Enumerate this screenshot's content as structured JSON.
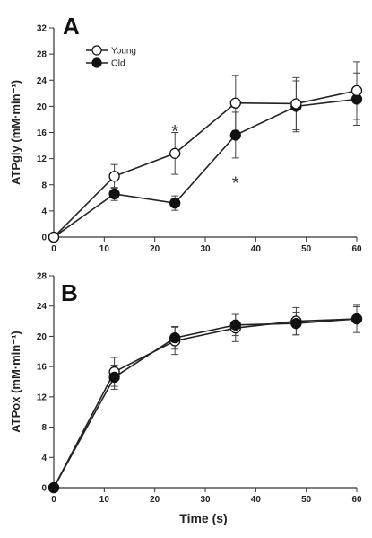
{
  "chart_data": [
    {
      "type": "line",
      "panel_label": "A",
      "ylabel": "ATPgly (mM·min⁻¹)",
      "xlabel": "",
      "xlim": [
        0,
        60
      ],
      "ylim": [
        0,
        32
      ],
      "xticks": [
        0,
        10,
        20,
        30,
        40,
        50,
        60
      ],
      "yticks": [
        0,
        4,
        8,
        12,
        16,
        20,
        24,
        28,
        32
      ],
      "legend": {
        "placement": "top-left"
      },
      "series": [
        {
          "name": "Young",
          "marker": "open-circle",
          "x": [
            0,
            12,
            24,
            36,
            48,
            60
          ],
          "y": [
            0,
            9.3,
            12.8,
            20.5,
            20.4,
            22.4
          ],
          "err": [
            0,
            1.8,
            3.2,
            4.2,
            4.0,
            4.4
          ]
        },
        {
          "name": "Old",
          "marker": "filled-circle",
          "x": [
            0,
            12,
            24,
            36,
            48,
            60
          ],
          "y": [
            0,
            6.6,
            5.2,
            15.6,
            20.0,
            21.1
          ],
          "err": [
            0,
            1.0,
            1.1,
            3.5,
            3.9,
            4.0
          ]
        }
      ],
      "annotations": [
        {
          "text": "*",
          "x": 24,
          "y": 16.9
        },
        {
          "text": "*",
          "x": 36,
          "y": 9.0
        }
      ]
    },
    {
      "type": "line",
      "panel_label": "B",
      "ylabel": "ATPox (mM·min⁻¹)",
      "xlabel": "Time (s)",
      "xlim": [
        0,
        60
      ],
      "ylim": [
        0,
        28
      ],
      "xticks": [
        0,
        10,
        20,
        30,
        40,
        50,
        60
      ],
      "yticks": [
        0,
        4,
        8,
        12,
        16,
        20,
        24,
        28
      ],
      "series": [
        {
          "name": "Young",
          "marker": "open-circle",
          "x": [
            0,
            12,
            24,
            36,
            48,
            60
          ],
          "y": [
            0,
            15.3,
            19.4,
            21.1,
            22.0,
            22.3
          ],
          "err": [
            0,
            1.9,
            1.8,
            1.8,
            1.8,
            1.8
          ]
        },
        {
          "name": "Old",
          "marker": "filled-circle",
          "x": [
            0,
            12,
            24,
            36,
            48,
            60
          ],
          "y": [
            0,
            14.6,
            19.8,
            21.5,
            21.7,
            22.3
          ],
          "err": [
            0,
            1.6,
            1.5,
            1.4,
            1.5,
            1.6
          ]
        }
      ]
    }
  ]
}
